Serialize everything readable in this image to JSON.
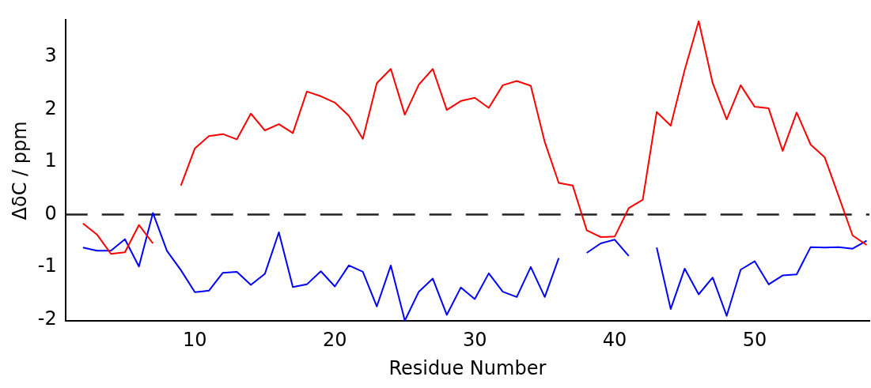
{
  "chart_data": {
    "type": "line",
    "xlabel": "Residue Number",
    "ylabel": "ΔδC / ppm",
    "x": [
      2,
      3,
      4,
      5,
      6,
      7,
      8,
      9,
      10,
      11,
      12,
      13,
      14,
      15,
      16,
      17,
      18,
      19,
      20,
      21,
      22,
      23,
      24,
      25,
      26,
      27,
      28,
      29,
      30,
      31,
      32,
      33,
      34,
      35,
      36,
      37,
      38,
      39,
      40,
      41,
      42,
      43,
      44,
      45,
      46,
      47,
      48,
      49,
      50,
      51,
      52,
      53,
      54,
      55,
      56,
      57,
      58
    ],
    "series": [
      {
        "color": "#ff0000",
        "values": [
          -0.17,
          -0.38,
          -0.75,
          -0.72,
          -0.2,
          -0.55,
          null,
          0.55,
          1.26,
          1.49,
          1.53,
          1.43,
          1.92,
          1.6,
          1.72,
          1.55,
          2.34,
          2.25,
          2.13,
          1.88,
          1.44,
          2.5,
          2.77,
          1.9,
          2.47,
          2.77,
          1.99,
          2.16,
          2.22,
          2.03,
          2.46,
          2.54,
          2.45,
          1.38,
          0.6,
          0.55,
          -0.3,
          -0.43,
          -0.42,
          0.12,
          0.28,
          1.95,
          1.69,
          2.75,
          3.68,
          2.5,
          1.81,
          2.46,
          2.05,
          2.02,
          1.21,
          1.94,
          1.33,
          1.09,
          0.35,
          -0.4,
          -0.58
        ]
      },
      {
        "color": "#0000ff",
        "values": [
          -0.63,
          -0.69,
          -0.69,
          -0.47,
          -0.99,
          0.03,
          -0.69,
          -1.06,
          -1.48,
          -1.45,
          -1.11,
          -1.09,
          -1.34,
          -1.13,
          -0.34,
          -1.38,
          -1.33,
          -1.08,
          -1.37,
          -0.97,
          -1.09,
          -1.75,
          -0.97,
          -2.02,
          -1.47,
          -1.22,
          -1.91,
          -1.39,
          -1.61,
          -1.12,
          -1.47,
          -1.57,
          -1.0,
          -1.57,
          -0.83,
          null,
          -0.73,
          -0.55,
          -0.48,
          -0.79,
          null,
          -0.63,
          -1.8,
          -1.03,
          -1.52,
          -1.2,
          -1.93,
          -1.05,
          -0.89,
          -1.33,
          -1.16,
          -1.14,
          -0.62,
          -0.63,
          -0.62,
          -0.65,
          -0.5
        ]
      }
    ],
    "xlim": [
      0.75,
      58.2
    ],
    "xticks": [
      10,
      20,
      30,
      40,
      50
    ],
    "ylim": [
      -2.03,
      3.7
    ],
    "yticks": [
      -2,
      -1,
      0,
      1,
      2,
      3
    ],
    "ref_lines": [
      {
        "axis": "y",
        "value": 0,
        "color": "#222222",
        "line_style": "dashed"
      }
    ],
    "grid": false,
    "legend": false,
    "marker": "none",
    "line_style": "solid"
  }
}
